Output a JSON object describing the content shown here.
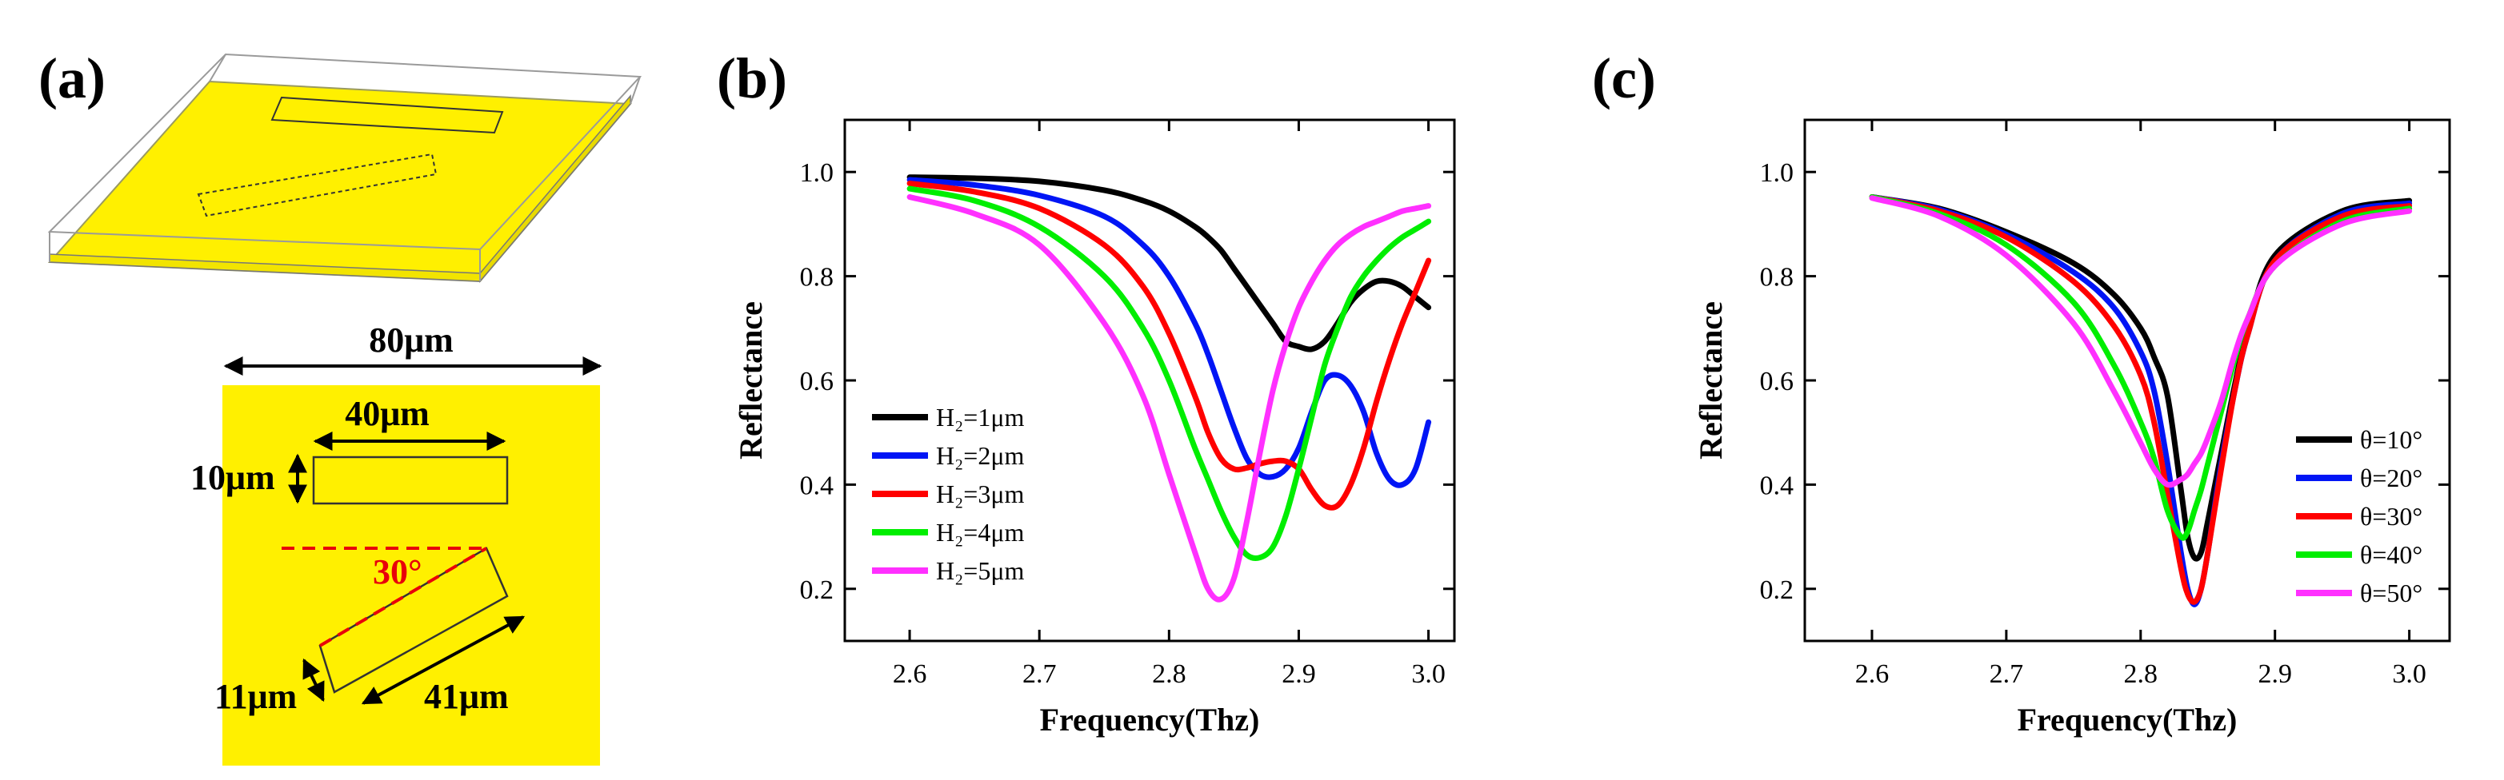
{
  "panels": {
    "a": {
      "label": "(a)",
      "dims": {
        "period": "80μm",
        "rect_length": "40μm",
        "rect_width": "10μm",
        "angle": "30°",
        "tilted_width": "11μm",
        "tilted_length": "41μm"
      },
      "colors": {
        "gold": "#FFF000",
        "angle_line": "#E8000A"
      }
    }
  },
  "chart_data": [
    {
      "panel_label": "(b)",
      "type": "line",
      "title": "",
      "xlabel": "Frequency(Thz)",
      "ylabel": "Reflectance",
      "xlim": [
        2.55,
        3.02
      ],
      "ylim": [
        0.1,
        1.1
      ],
      "xticks": [
        2.6,
        2.7,
        2.8,
        2.9,
        3.0
      ],
      "yticks": [
        0.2,
        0.4,
        0.6,
        0.8,
        1.0
      ],
      "legend_position": "left-middle",
      "x": [
        2.6,
        2.65,
        2.7,
        2.75,
        2.78,
        2.8,
        2.82,
        2.83,
        2.84,
        2.85,
        2.86,
        2.87,
        2.88,
        2.89,
        2.9,
        2.91,
        2.92,
        2.93,
        2.94,
        2.95,
        2.96,
        2.97,
        2.98,
        2.99,
        3.0
      ],
      "series": [
        {
          "name": "H2=1μm",
          "legend": "H₂=1μm",
          "color": "#000000",
          "values": [
            0.99,
            0.988,
            0.982,
            0.965,
            0.945,
            0.925,
            0.895,
            0.875,
            0.85,
            0.815,
            0.78,
            0.745,
            0.71,
            0.675,
            0.665,
            0.66,
            0.675,
            0.71,
            0.75,
            0.775,
            0.79,
            0.79,
            0.78,
            0.76,
            0.74
          ]
        },
        {
          "name": "H2=2μm",
          "legend": "H₂=2μm",
          "color": "#0015F5",
          "values": [
            0.985,
            0.975,
            0.955,
            0.915,
            0.86,
            0.8,
            0.71,
            0.65,
            0.58,
            0.51,
            0.45,
            0.42,
            0.415,
            0.43,
            0.47,
            0.54,
            0.6,
            0.61,
            0.59,
            0.54,
            0.46,
            0.41,
            0.4,
            0.43,
            0.52
          ]
        },
        {
          "name": "H2=3μm",
          "legend": "H₂=3μm",
          "color": "#FF0000",
          "values": [
            0.978,
            0.962,
            0.93,
            0.86,
            0.78,
            0.69,
            0.57,
            0.5,
            0.45,
            0.43,
            0.432,
            0.44,
            0.445,
            0.445,
            0.43,
            0.39,
            0.36,
            0.36,
            0.4,
            0.47,
            0.56,
            0.64,
            0.71,
            0.77,
            0.83
          ]
        },
        {
          "name": "H2=4μm",
          "legend": "H₂=4μm",
          "color": "#00EE00",
          "values": [
            0.968,
            0.945,
            0.895,
            0.8,
            0.7,
            0.6,
            0.47,
            0.41,
            0.35,
            0.3,
            0.265,
            0.26,
            0.28,
            0.34,
            0.43,
            0.53,
            0.63,
            0.7,
            0.76,
            0.8,
            0.83,
            0.855,
            0.875,
            0.89,
            0.905
          ]
        },
        {
          "name": "H2=5μm",
          "legend": "H₂=5μm",
          "color": "#FF30FF",
          "values": [
            0.952,
            0.92,
            0.86,
            0.71,
            0.57,
            0.42,
            0.27,
            0.2,
            0.18,
            0.22,
            0.33,
            0.46,
            0.58,
            0.67,
            0.74,
            0.79,
            0.83,
            0.86,
            0.88,
            0.895,
            0.905,
            0.915,
            0.925,
            0.93,
            0.935
          ]
        }
      ]
    },
    {
      "panel_label": "(c)",
      "type": "line",
      "title": "",
      "xlabel": "Frequency(Thz)",
      "ylabel": "Reflectance",
      "xlim": [
        2.55,
        3.03
      ],
      "ylim": [
        0.1,
        1.1
      ],
      "xticks": [
        2.6,
        2.7,
        2.8,
        2.9,
        3.0
      ],
      "yticks": [
        0.2,
        0.4,
        0.6,
        0.8,
        1.0
      ],
      "legend_position": "bottom-right",
      "x": [
        2.6,
        2.65,
        2.7,
        2.75,
        2.78,
        2.8,
        2.81,
        2.82,
        2.83,
        2.835,
        2.84,
        2.845,
        2.85,
        2.86,
        2.87,
        2.88,
        2.9,
        2.95,
        3.0
      ],
      "series": [
        {
          "name": "θ=10°",
          "legend": "θ=10°",
          "color": "#000000",
          "values": [
            0.952,
            0.93,
            0.885,
            0.825,
            0.765,
            0.7,
            0.645,
            0.57,
            0.39,
            0.3,
            0.26,
            0.27,
            0.33,
            0.46,
            0.59,
            0.7,
            0.84,
            0.925,
            0.945
          ]
        },
        {
          "name": "θ=20°",
          "legend": "θ=20°",
          "color": "#0015F5",
          "values": [
            0.952,
            0.928,
            0.88,
            0.808,
            0.74,
            0.655,
            0.58,
            0.44,
            0.27,
            0.2,
            0.17,
            0.2,
            0.27,
            0.44,
            0.58,
            0.69,
            0.83,
            0.92,
            0.94
          ]
        },
        {
          "name": "θ=30°",
          "legend": "θ=30°",
          "color": "#FF0000",
          "values": [
            0.952,
            0.925,
            0.875,
            0.79,
            0.705,
            0.61,
            0.52,
            0.38,
            0.24,
            0.19,
            0.175,
            0.2,
            0.27,
            0.43,
            0.58,
            0.69,
            0.83,
            0.915,
            0.935
          ]
        },
        {
          "name": "θ=40°",
          "legend": "θ=40°",
          "color": "#00EE00",
          "values": [
            0.952,
            0.92,
            0.86,
            0.75,
            0.63,
            0.52,
            0.45,
            0.35,
            0.3,
            0.31,
            0.35,
            0.39,
            0.44,
            0.54,
            0.64,
            0.72,
            0.82,
            0.905,
            0.93
          ]
        },
        {
          "name": "θ=50°",
          "legend": "θ=50°",
          "color": "#FF30FF",
          "values": [
            0.95,
            0.915,
            0.84,
            0.71,
            0.58,
            0.48,
            0.43,
            0.4,
            0.41,
            0.42,
            0.44,
            0.46,
            0.49,
            0.56,
            0.65,
            0.72,
            0.82,
            0.9,
            0.925
          ]
        }
      ]
    }
  ]
}
